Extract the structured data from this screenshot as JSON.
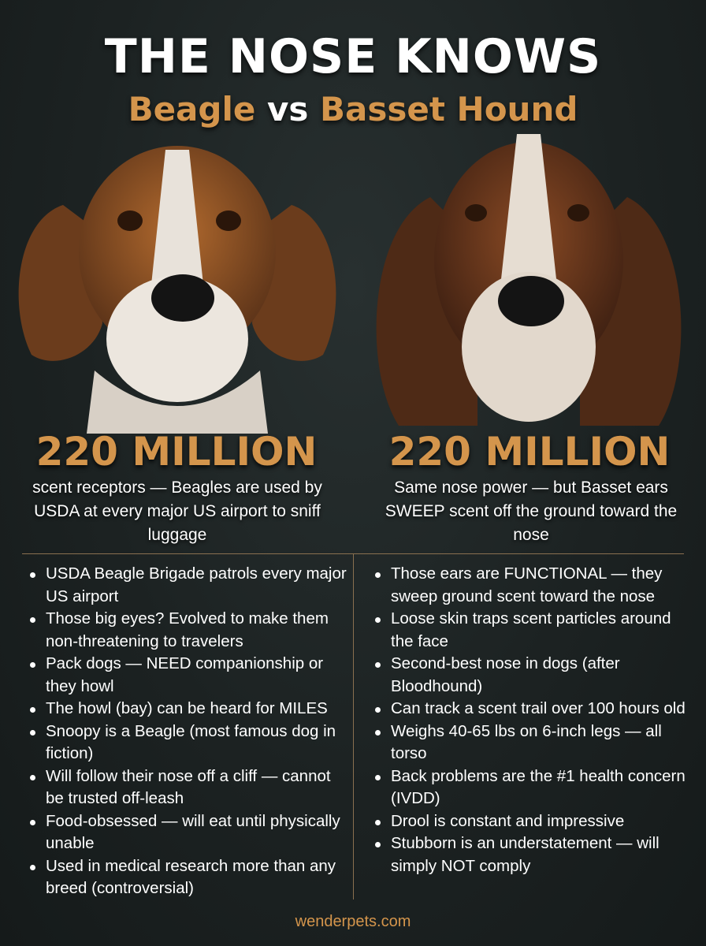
{
  "header": {
    "title": "THE NOSE KNOWS",
    "subtitle_left": "Beagle",
    "subtitle_vs": "vs",
    "subtitle_right": "Basset Hound"
  },
  "colors": {
    "accent": "#d4954c",
    "background": "#1c2222",
    "divider": "#8a7050"
  },
  "beagle": {
    "image": "beagle-portrait",
    "stat": "220 MILLION",
    "description": "scent receptors — Beagles are used by USDA at every major US airport to sniff luggage",
    "facts": [
      "USDA Beagle Brigade patrols every major US airport",
      "Those big eyes? Evolved to make them non-threatening to travelers",
      "Pack dogs — NEED companionship or they howl",
      "The howl (bay) can be heard for MILES",
      "Snoopy is a Beagle (most famous dog in fiction)",
      "Will follow their nose off a cliff — cannot be trusted off-leash",
      "Food-obsessed — will eat until physically unable",
      "Used in medical research more than any breed (controversial)"
    ]
  },
  "basset": {
    "image": "basset-hound-portrait",
    "stat": "220 MILLION",
    "description": "Same nose power — but Basset ears SWEEP scent off the ground toward the nose",
    "facts": [
      "Those ears are FUNCTIONAL — they sweep ground scent toward the nose",
      "Loose skin traps scent particles around the face",
      "Second-best nose in dogs (after Bloodhound)",
      "Can track a scent trail over 100 hours old",
      "Weighs 40-65 lbs on 6-inch legs — all torso",
      "Back problems are the #1 health concern (IVDD)",
      "Drool is constant and impressive",
      "Stubborn is an understatement — will simply NOT comply"
    ]
  },
  "footer": {
    "site": "wenderpets.com"
  }
}
